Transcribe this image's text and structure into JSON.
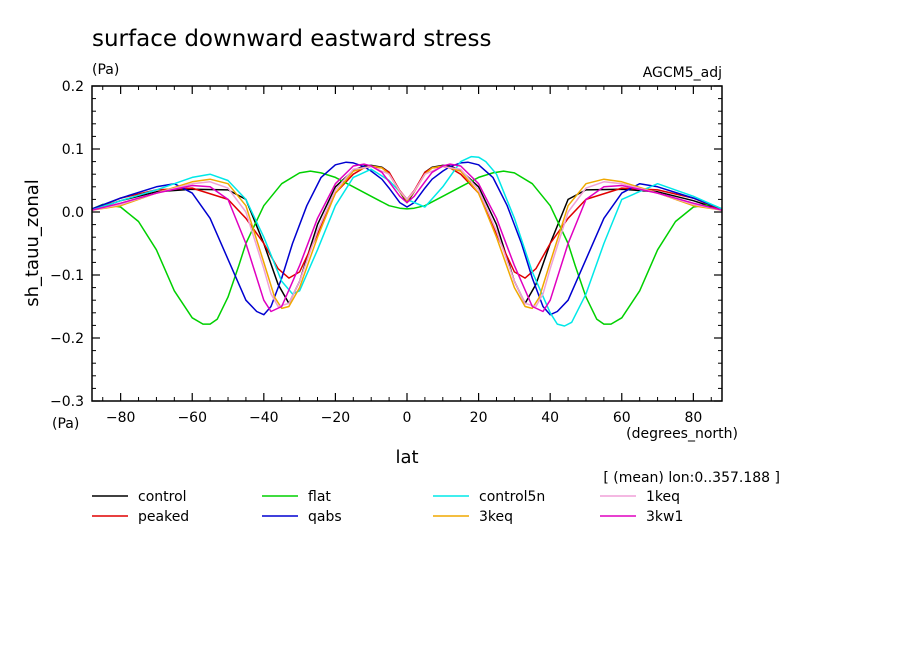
{
  "chart_data": {
    "type": "line",
    "title": "surface downward eastward stress",
    "units": "(Pa)",
    "dataset_label": "AGCM5_adj",
    "xlabel": "lat",
    "xunits": "(degrees_north)",
    "ylabel": "sh_tauu_zonal",
    "yunits": "(Pa)",
    "note": "[ (mean) lon:0..357.188 ]",
    "xlim": [
      -88,
      88
    ],
    "ylim": [
      -0.3,
      0.2
    ],
    "xticks": [
      -80,
      -60,
      -40,
      -20,
      0,
      20,
      40,
      60,
      80
    ],
    "xtick_labels": [
      "−80",
      "−60",
      "−40",
      "−20",
      "0",
      "20",
      "40",
      "60",
      "80"
    ],
    "yticks": [
      -0.3,
      -0.2,
      -0.1,
      0.0,
      0.1,
      0.2
    ],
    "ytick_labels": [
      "−0.3",
      "−0.2",
      "−0.1",
      "0.0",
      "0.1",
      "0.2"
    ],
    "series": [
      {
        "name": "control",
        "color": "#000000",
        "x": [
          -88,
          -80,
          -70,
          -60,
          -50,
          -45,
          -40,
          -36,
          -33,
          -30,
          -25,
          -20,
          -15,
          -12,
          -10,
          -7,
          -5,
          -2,
          0,
          2,
          5,
          7,
          10,
          12,
          15,
          20,
          25,
          30,
          33,
          36,
          40,
          45,
          50,
          60,
          70,
          80,
          88
        ],
        "y": [
          0.003,
          0.018,
          0.032,
          0.036,
          0.035,
          0.02,
          -0.05,
          -0.115,
          -0.145,
          -0.11,
          -0.02,
          0.04,
          0.066,
          0.073,
          0.074,
          0.071,
          0.063,
          0.032,
          0.015,
          0.032,
          0.063,
          0.071,
          0.074,
          0.073,
          0.066,
          0.04,
          -0.02,
          -0.11,
          -0.145,
          -0.115,
          -0.05,
          0.02,
          0.035,
          0.036,
          0.032,
          0.018,
          0.003
        ]
      },
      {
        "name": "peaked",
        "color": "#e00000",
        "x": [
          -88,
          -80,
          -70,
          -60,
          -50,
          -45,
          -40,
          -36,
          -33,
          -30,
          -25,
          -20,
          -15,
          -12,
          -10,
          -7,
          -5,
          -2,
          0,
          2,
          5,
          7,
          10,
          12,
          15,
          20,
          25,
          30,
          33,
          36,
          40,
          45,
          50,
          60,
          70,
          80,
          88
        ],
        "y": [
          0.003,
          0.022,
          0.035,
          0.038,
          0.02,
          -0.01,
          -0.05,
          -0.09,
          -0.105,
          -0.095,
          -0.035,
          0.03,
          0.06,
          0.07,
          0.072,
          0.07,
          0.063,
          0.034,
          0.02,
          0.034,
          0.063,
          0.07,
          0.072,
          0.07,
          0.06,
          0.03,
          -0.035,
          -0.095,
          -0.105,
          -0.09,
          -0.05,
          -0.01,
          0.02,
          0.038,
          0.035,
          0.022,
          0.003
        ]
      },
      {
        "name": "flat",
        "color": "#00d000",
        "x": [
          -88,
          -85,
          -80,
          -75,
          -70,
          -65,
          -60,
          -57,
          -55,
          -53,
          -50,
          -47,
          -45,
          -40,
          -35,
          -30,
          -27,
          -24,
          -20,
          -15,
          -10,
          -5,
          -2,
          0,
          2,
          5,
          10,
          15,
          20,
          24,
          27,
          30,
          35,
          40,
          45,
          47,
          50,
          53,
          55,
          57,
          60,
          65,
          70,
          75,
          80,
          85,
          88
        ],
        "y": [
          0.005,
          0.012,
          0.008,
          -0.015,
          -0.06,
          -0.125,
          -0.168,
          -0.178,
          -0.178,
          -0.17,
          -0.135,
          -0.085,
          -0.05,
          0.01,
          0.045,
          0.062,
          0.065,
          0.062,
          0.055,
          0.04,
          0.025,
          0.01,
          0.006,
          0.005,
          0.006,
          0.01,
          0.025,
          0.04,
          0.055,
          0.062,
          0.065,
          0.062,
          0.045,
          0.01,
          -0.05,
          -0.085,
          -0.135,
          -0.17,
          -0.178,
          -0.178,
          -0.168,
          -0.125,
          -0.06,
          -0.015,
          0.008,
          0.012,
          0.005
        ]
      },
      {
        "name": "qabs",
        "color": "#0000d0",
        "x": [
          -88,
          -80,
          -70,
          -65,
          -60,
          -55,
          -50,
          -45,
          -42,
          -40,
          -38,
          -35,
          -32,
          -28,
          -24,
          -20,
          -17,
          -15,
          -12,
          -10,
          -7,
          -5,
          -2,
          0,
          2,
          5,
          7,
          10,
          12,
          15,
          17,
          20,
          24,
          28,
          32,
          35,
          38,
          40,
          42,
          45,
          50,
          55,
          60,
          65,
          70,
          80,
          88
        ],
        "y": [
          0.005,
          0.022,
          0.04,
          0.045,
          0.03,
          -0.01,
          -0.075,
          -0.14,
          -0.158,
          -0.163,
          -0.15,
          -0.105,
          -0.05,
          0.01,
          0.055,
          0.075,
          0.079,
          0.078,
          0.072,
          0.065,
          0.052,
          0.038,
          0.015,
          0.008,
          0.015,
          0.038,
          0.052,
          0.065,
          0.072,
          0.078,
          0.079,
          0.075,
          0.055,
          0.01,
          -0.05,
          -0.105,
          -0.15,
          -0.163,
          -0.158,
          -0.14,
          -0.075,
          -0.01,
          0.03,
          0.045,
          0.04,
          0.022,
          0.005
        ]
      },
      {
        "name": "control5n",
        "color": "#00e8e8",
        "x": [
          -88,
          -80,
          -70,
          -60,
          -55,
          -50,
          -45,
          -40,
          -35,
          -32,
          -30,
          -25,
          -20,
          -15,
          -10,
          -5,
          0,
          5,
          10,
          15,
          18,
          20,
          22,
          25,
          30,
          35,
          40,
          42,
          44,
          46,
          50,
          55,
          60,
          70,
          80,
          88
        ],
        "y": [
          0.003,
          0.018,
          0.035,
          0.055,
          0.06,
          0.05,
          0.02,
          -0.04,
          -0.11,
          -0.13,
          -0.125,
          -0.06,
          0.01,
          0.055,
          0.068,
          0.05,
          0.02,
          0.008,
          0.04,
          0.08,
          0.088,
          0.087,
          0.08,
          0.06,
          -0.01,
          -0.095,
          -0.16,
          -0.178,
          -0.181,
          -0.175,
          -0.13,
          -0.05,
          0.02,
          0.045,
          0.025,
          0.005
        ]
      },
      {
        "name": "3keq",
        "color": "#f0a800",
        "x": [
          -88,
          -80,
          -70,
          -60,
          -55,
          -50,
          -45,
          -40,
          -37,
          -35,
          -33,
          -30,
          -25,
          -20,
          -15,
          -10,
          -7,
          -5,
          -2,
          0,
          2,
          5,
          7,
          10,
          15,
          20,
          25,
          30,
          33,
          35,
          37,
          40,
          45,
          50,
          55,
          60,
          70,
          80,
          88
        ],
        "y": [
          0.003,
          0.01,
          0.03,
          0.048,
          0.052,
          0.045,
          0.01,
          -0.08,
          -0.135,
          -0.153,
          -0.15,
          -0.12,
          -0.04,
          0.03,
          0.065,
          0.073,
          0.07,
          0.06,
          0.032,
          0.018,
          0.032,
          0.06,
          0.07,
          0.073,
          0.065,
          0.03,
          -0.04,
          -0.12,
          -0.15,
          -0.153,
          -0.135,
          -0.08,
          0.01,
          0.045,
          0.052,
          0.048,
          0.03,
          0.01,
          0.003
        ]
      },
      {
        "name": "1keq",
        "color": "#f0a0d8",
        "x": [
          -88,
          -80,
          -70,
          -60,
          -55,
          -50,
          -45,
          -40,
          -38,
          -36,
          -33,
          -30,
          -25,
          -20,
          -15,
          -10,
          -5,
          -2,
          0,
          2,
          5,
          10,
          15,
          20,
          25,
          30,
          33,
          36,
          38,
          40,
          45,
          50,
          55,
          60,
          70,
          80,
          88
        ],
        "y": [
          0.003,
          0.012,
          0.03,
          0.045,
          0.048,
          0.038,
          0.0,
          -0.09,
          -0.13,
          -0.15,
          -0.145,
          -0.11,
          -0.03,
          0.035,
          0.068,
          0.072,
          0.06,
          0.033,
          0.02,
          0.033,
          0.06,
          0.072,
          0.068,
          0.035,
          -0.03,
          -0.11,
          -0.145,
          -0.15,
          -0.13,
          -0.09,
          0.0,
          0.038,
          0.048,
          0.045,
          0.03,
          0.012,
          0.003
        ]
      },
      {
        "name": "3kw1",
        "color": "#e000c0",
        "x": [
          -88,
          -80,
          -70,
          -60,
          -55,
          -50,
          -45,
          -40,
          -38,
          -35,
          -30,
          -25,
          -20,
          -15,
          -12,
          -10,
          -7,
          -5,
          -2,
          0,
          2,
          5,
          7,
          10,
          12,
          15,
          20,
          25,
          30,
          35,
          38,
          40,
          45,
          50,
          55,
          60,
          70,
          80,
          88
        ],
        "y": [
          0.003,
          0.014,
          0.03,
          0.042,
          0.04,
          0.02,
          -0.05,
          -0.14,
          -0.158,
          -0.15,
          -0.085,
          -0.01,
          0.045,
          0.073,
          0.076,
          0.073,
          0.063,
          0.048,
          0.025,
          0.015,
          0.025,
          0.048,
          0.063,
          0.073,
          0.076,
          0.073,
          0.045,
          -0.01,
          -0.085,
          -0.15,
          -0.158,
          -0.14,
          -0.05,
          0.02,
          0.04,
          0.042,
          0.03,
          0.014,
          0.003
        ]
      }
    ]
  }
}
